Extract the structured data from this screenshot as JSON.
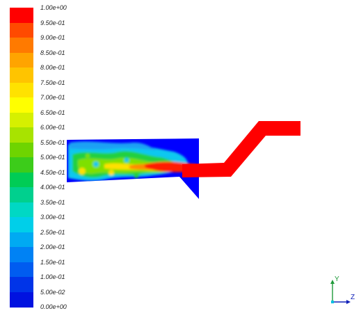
{
  "colorbar": {
    "labels": [
      "1.00e+00",
      "9.50e-01",
      "9.00e-01",
      "8.50e-01",
      "8.00e-01",
      "7.50e-01",
      "7.00e-01",
      "6.50e-01",
      "6.00e-01",
      "5.50e-01",
      "5.00e-01",
      "4.50e-01",
      "4.00e-01",
      "3.50e-01",
      "3.00e-01",
      "2.50e-01",
      "2.00e-01",
      "1.50e-01",
      "1.00e-01",
      "5.00e-02",
      "0.00e+00"
    ],
    "colors": [
      "#ff0000",
      "#ff4a00",
      "#ff7a00",
      "#ffa400",
      "#ffc400",
      "#ffe200",
      "#ffff00",
      "#d6f000",
      "#a8e300",
      "#6ed400",
      "#3ccc1a",
      "#00cc55",
      "#00d08e",
      "#00d8c4",
      "#00cfe9",
      "#00aaf2",
      "#0082f4",
      "#005cf0",
      "#0034e8",
      "#0012e0"
    ]
  },
  "axes": {
    "y_label": "Y",
    "z_label": "Z"
  },
  "colors": {
    "background": "#ffffff",
    "high": "#ff0000",
    "low": "#0000ff"
  }
}
